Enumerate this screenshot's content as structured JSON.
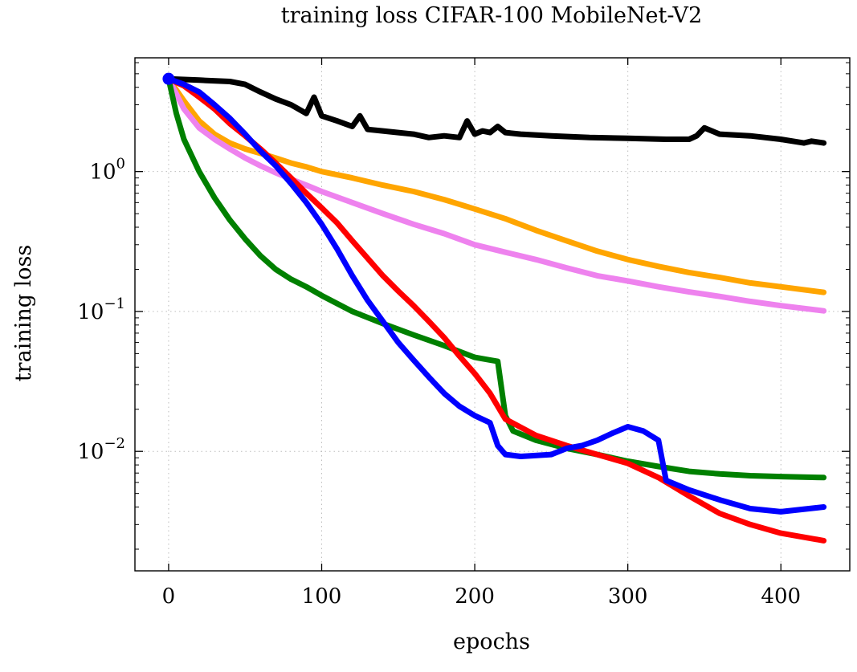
{
  "chart_data": {
    "type": "line",
    "title": "training loss CIFAR-100 MobileNet-V2",
    "xlabel": "epochs",
    "ylabel": "training loss",
    "xlim": [
      -22,
      445
    ],
    "ylim": [
      0.0014,
      6.5
    ],
    "y_scale": "log",
    "grid": true,
    "grid_style": "dotted",
    "legend": "none",
    "x_ticks": [
      {
        "value": 0,
        "label": "0"
      },
      {
        "value": 100,
        "label": "100"
      },
      {
        "value": 200,
        "label": "200"
      },
      {
        "value": 300,
        "label": "300"
      },
      {
        "value": 400,
        "label": "400"
      }
    ],
    "y_ticks": [
      {
        "value": 1,
        "base": "10",
        "exp": "0"
      },
      {
        "value": 0.1,
        "base": "10",
        "exp": "−1"
      },
      {
        "value": 0.01,
        "base": "10",
        "exp": "−2"
      }
    ],
    "series": [
      {
        "color": "#000000",
        "x": [
          0,
          20,
          40,
          50,
          60,
          70,
          80,
          90,
          95,
          100,
          110,
          120,
          125,
          130,
          140,
          150,
          160,
          170,
          180,
          190,
          195,
          200,
          205,
          210,
          215,
          220,
          230,
          250,
          275,
          300,
          325,
          340,
          345,
          350,
          360,
          380,
          400,
          415,
          420,
          428
        ],
        "y": [
          4.6,
          4.5,
          4.4,
          4.2,
          3.7,
          3.3,
          3.0,
          2.6,
          3.4,
          2.5,
          2.3,
          2.1,
          2.5,
          2.0,
          1.95,
          1.9,
          1.85,
          1.75,
          1.8,
          1.75,
          2.3,
          1.85,
          1.95,
          1.9,
          2.1,
          1.9,
          1.85,
          1.8,
          1.75,
          1.73,
          1.7,
          1.7,
          1.8,
          2.05,
          1.85,
          1.8,
          1.7,
          1.6,
          1.65,
          1.6
        ]
      },
      {
        "color": "#FFA500",
        "x": [
          0,
          10,
          20,
          30,
          40,
          50,
          60,
          70,
          80,
          90,
          100,
          120,
          140,
          160,
          180,
          200,
          220,
          240,
          260,
          280,
          300,
          320,
          340,
          360,
          380,
          400,
          428
        ],
        "y": [
          4.6,
          3.2,
          2.3,
          1.85,
          1.6,
          1.45,
          1.35,
          1.25,
          1.15,
          1.08,
          1.0,
          0.9,
          0.8,
          0.72,
          0.63,
          0.54,
          0.46,
          0.38,
          0.32,
          0.27,
          0.235,
          0.21,
          0.19,
          0.175,
          0.16,
          0.15,
          0.137
        ]
      },
      {
        "color": "#EE82EE",
        "x": [
          0,
          10,
          20,
          30,
          40,
          50,
          60,
          70,
          80,
          90,
          100,
          120,
          140,
          160,
          180,
          200,
          220,
          240,
          260,
          280,
          300,
          320,
          340,
          360,
          380,
          400,
          428
        ],
        "y": [
          4.6,
          2.8,
          2.05,
          1.7,
          1.45,
          1.25,
          1.1,
          0.98,
          0.88,
          0.8,
          0.72,
          0.6,
          0.5,
          0.42,
          0.36,
          0.3,
          0.265,
          0.235,
          0.205,
          0.18,
          0.165,
          0.15,
          0.138,
          0.128,
          0.118,
          0.11,
          0.101
        ]
      },
      {
        "color": "#008000",
        "x": [
          0,
          5,
          10,
          20,
          30,
          40,
          50,
          60,
          70,
          80,
          90,
          100,
          120,
          140,
          160,
          180,
          200,
          210,
          215,
          220,
          225,
          240,
          260,
          280,
          300,
          320,
          340,
          360,
          380,
          400,
          428
        ],
        "y": [
          4.6,
          2.6,
          1.7,
          1.0,
          0.65,
          0.45,
          0.33,
          0.25,
          0.2,
          0.17,
          0.15,
          0.13,
          0.1,
          0.082,
          0.068,
          0.057,
          0.047,
          0.045,
          0.044,
          0.018,
          0.014,
          0.012,
          0.0105,
          0.0095,
          0.0085,
          0.0078,
          0.0072,
          0.0069,
          0.0067,
          0.0066,
          0.0065
        ]
      },
      {
        "color": "#FF0000",
        "x": [
          0,
          10,
          20,
          30,
          40,
          50,
          60,
          70,
          80,
          90,
          100,
          110,
          120,
          130,
          140,
          150,
          160,
          170,
          180,
          190,
          200,
          210,
          220,
          240,
          260,
          280,
          300,
          320,
          340,
          360,
          380,
          400,
          428
        ],
        "y": [
          4.6,
          4.1,
          3.4,
          2.8,
          2.2,
          1.8,
          1.45,
          1.15,
          0.9,
          0.7,
          0.55,
          0.43,
          0.32,
          0.24,
          0.18,
          0.14,
          0.11,
          0.085,
          0.065,
          0.048,
          0.036,
          0.026,
          0.017,
          0.013,
          0.011,
          0.0095,
          0.0082,
          0.0065,
          0.0048,
          0.0036,
          0.003,
          0.0026,
          0.0023
        ]
      },
      {
        "color": "#0000FF",
        "x": [
          0,
          10,
          20,
          30,
          40,
          50,
          60,
          70,
          80,
          90,
          100,
          110,
          120,
          130,
          140,
          150,
          160,
          170,
          180,
          190,
          200,
          210,
          215,
          220,
          230,
          250,
          260,
          270,
          280,
          290,
          300,
          310,
          320,
          325,
          340,
          360,
          380,
          400,
          428
        ],
        "y": [
          4.6,
          4.2,
          3.7,
          3.0,
          2.4,
          1.85,
          1.4,
          1.1,
          0.82,
          0.6,
          0.42,
          0.28,
          0.18,
          0.12,
          0.085,
          0.06,
          0.045,
          0.034,
          0.026,
          0.021,
          0.018,
          0.016,
          0.011,
          0.0095,
          0.0092,
          0.0095,
          0.0105,
          0.011,
          0.012,
          0.0135,
          0.015,
          0.014,
          0.012,
          0.0062,
          0.0053,
          0.0045,
          0.0039,
          0.0037,
          0.004
        ]
      }
    ]
  }
}
